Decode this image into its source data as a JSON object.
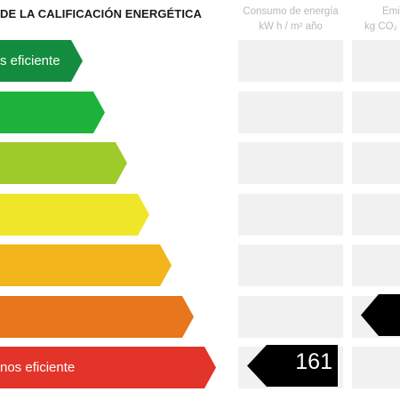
{
  "header": {
    "title": "DE LA CALIFICACIÓN ENERGÉTICA",
    "energy_column": {
      "line1": "Consumo de energía",
      "line2": "kW h / m² año"
    },
    "emissions_column": {
      "line1": "Emis",
      "line2": "kg CO₂"
    }
  },
  "scale": {
    "bars": [
      {
        "label": "s eficiente",
        "color": "#138c3f"
      },
      {
        "label": "",
        "color": "#1db33b"
      },
      {
        "label": "",
        "color": "#9ecb2a"
      },
      {
        "label": "",
        "color": "#efe62a"
      },
      {
        "label": "",
        "color": "#f2b51c"
      },
      {
        "label": "",
        "color": "#e8761d"
      },
      {
        "label": "nos eficiente",
        "color": "#e3342a"
      }
    ]
  },
  "rating": {
    "energy_value": "161",
    "energy_class_index": 6,
    "emissions_class_index": 5
  },
  "colors": {
    "cell_background": "#f1f1f1",
    "marker": "#000000",
    "title": "#1a1a1a",
    "column_header": "#b9b9b9"
  }
}
